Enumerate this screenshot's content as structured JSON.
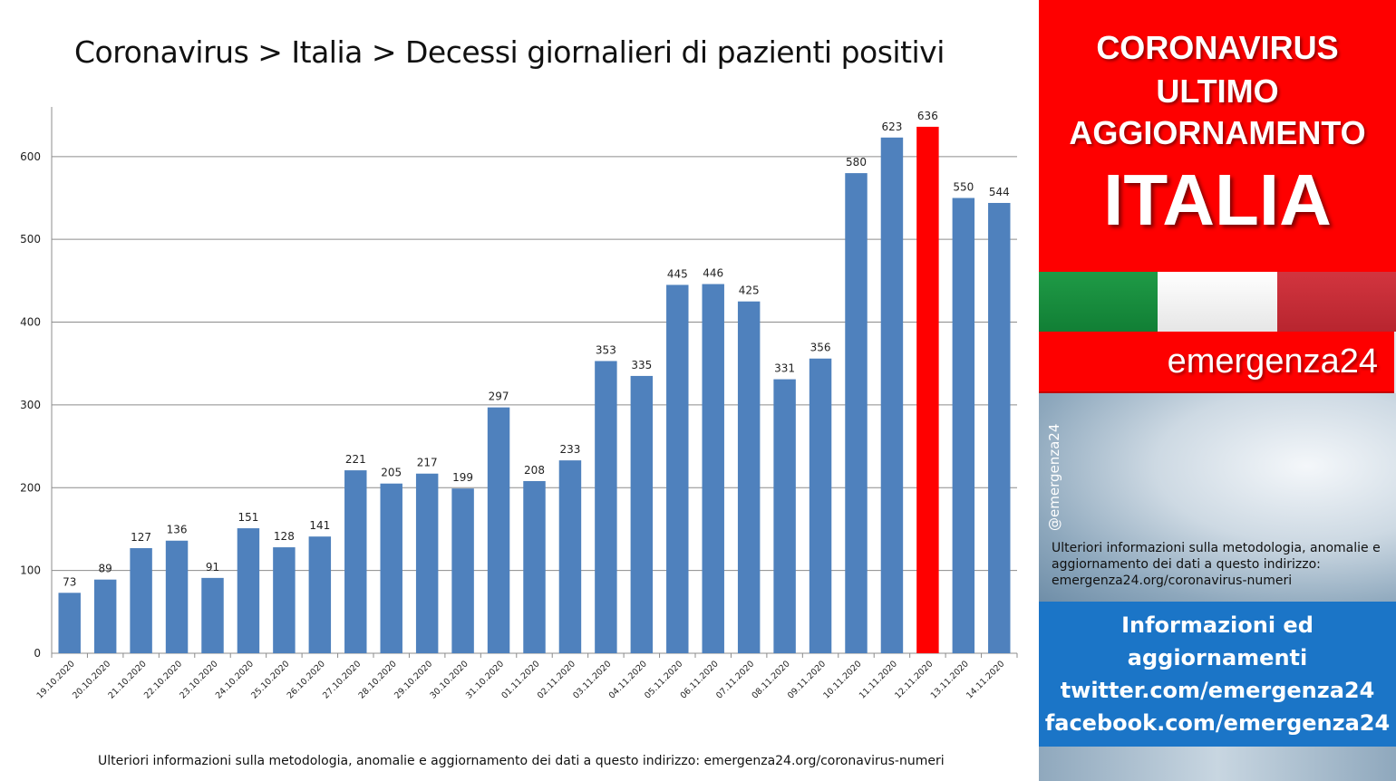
{
  "chart_data": {
    "type": "bar",
    "title": "Coronavirus > Italia > Decessi giornalieri di pazienti positivi",
    "xlabel": "",
    "ylabel": "",
    "ylim": [
      0,
      660
    ],
    "yticks": [
      0,
      100,
      200,
      300,
      400,
      500,
      600
    ],
    "grid": true,
    "bar_color": "#4f81bd",
    "highlight_color": "#ff0000",
    "highlight_index": 24,
    "categories": [
      "19.10.2020",
      "20.10.2020",
      "21.10.2020",
      "22.10.2020",
      "23.10.2020",
      "24.10.2020",
      "25.10.2020",
      "26.10.2020",
      "27.10.2020",
      "28.10.2020",
      "29.10.2020",
      "30.10.2020",
      "31.10.2020",
      "01.11.2020",
      "02.11.2020",
      "03.11.2020",
      "04.11.2020",
      "05.11.2020",
      "06.11.2020",
      "07.11.2020",
      "08.11.2020",
      "09.11.2020",
      "10.11.2020",
      "11.11.2020",
      "12.11.2020",
      "13.11.2020",
      "14.11.2020"
    ],
    "values": [
      73,
      89,
      127,
      136,
      91,
      151,
      128,
      141,
      221,
      205,
      217,
      199,
      297,
      208,
      233,
      353,
      335,
      445,
      446,
      425,
      331,
      356,
      580,
      623,
      636,
      550,
      544
    ]
  },
  "footer_note": "Ulteriori informazioni sulla metodologia, anomalie e aggiornamento dei dati a questo indirizzo: emergenza24.org/coronavirus-numeri",
  "panel": {
    "header_lines": [
      "CORONAVIRUS",
      "ULTIMO",
      "AGGIORNAMENTO"
    ],
    "country": "ITALIA",
    "brand": "emergenza24",
    "handle": "@emergenza24",
    "method_note": "Ulteriori informazioni sulla metodologia, anomalie e aggiornamento dei dati a questo indirizzo: emergenza24.org/coronavirus-numeri",
    "info_lines": [
      "Informazioni ed",
      "aggiornamenti",
      "twitter.com/emergenza24",
      "facebook.com/emergenza24"
    ],
    "colors": {
      "red": "#fe0000",
      "blue": "#1b75c7",
      "flag_green": "#1f9a46",
      "flag_red": "#c8303a"
    }
  }
}
